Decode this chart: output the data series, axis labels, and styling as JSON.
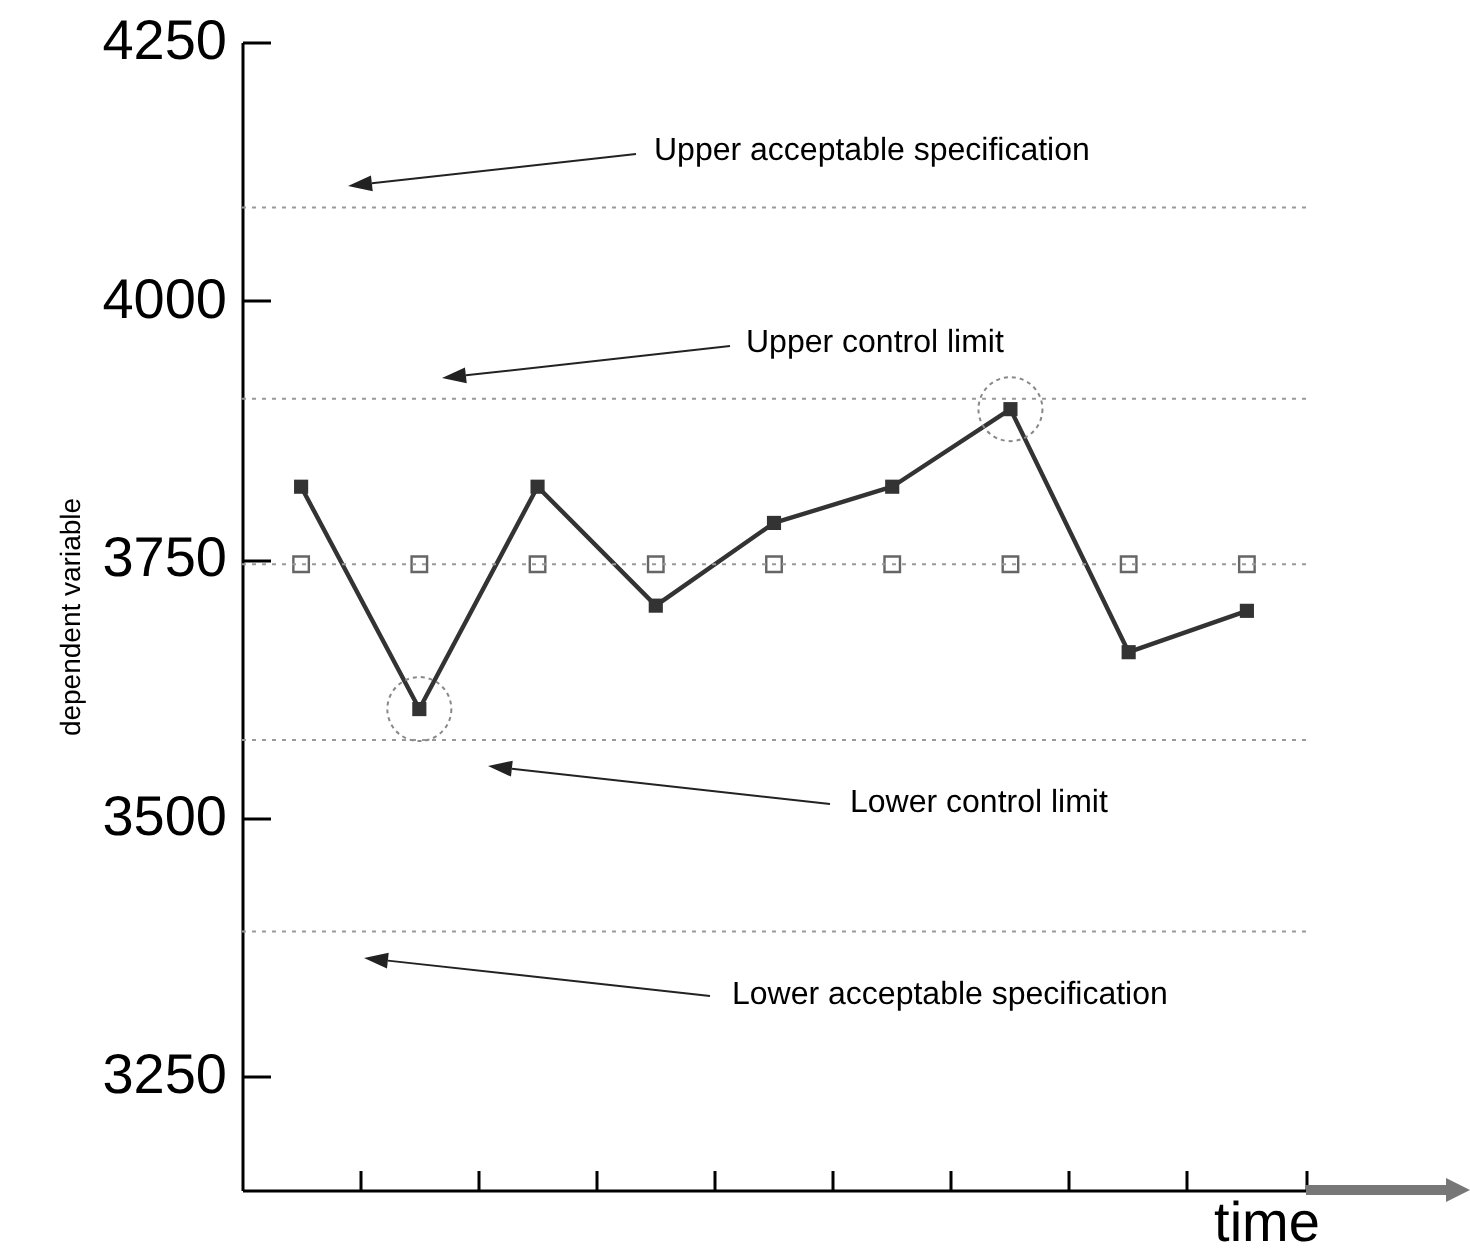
{
  "chart_data": {
    "type": "line",
    "xlabel": "time",
    "ylabel": "dependent variable",
    "categories": [
      null,
      null,
      null,
      null,
      null,
      null,
      null,
      null,
      null
    ],
    "series": [
      {
        "type": "line",
        "color": "#333333",
        "marker": "square",
        "values": [
          3820,
          3605,
          3820,
          3705,
          3785,
          3820,
          3895,
          3660,
          3700
        ]
      },
      {
        "type": "scatter",
        "color": "#666666",
        "marker": "square",
        "values": [
          3745,
          3745,
          3745,
          3745,
          3745,
          3745,
          3745,
          3745,
          3745
        ]
      }
    ],
    "ylim": [
      3140,
      4250
    ],
    "yticks": [
      3250,
      3500,
      3750,
      4000,
      4250
    ],
    "ref_lines": [
      {
        "axis": "y",
        "value": 4090,
        "label": "Upper acceptable specification",
        "color": "#999999",
        "line_style": "dotted"
      },
      {
        "axis": "y",
        "value": 3905,
        "label": "Upper control limit",
        "color": "#999999",
        "line_style": "dotted"
      },
      {
        "axis": "y",
        "value": 3745,
        "color": "#999999",
        "line_style": "dotted"
      },
      {
        "axis": "y",
        "value": 3575,
        "label": "Lower control limit",
        "color": "#999999",
        "line_style": "dotted"
      },
      {
        "axis": "y",
        "value": 3390,
        "label": "Lower acceptable specification",
        "color": "#999999",
        "line_style": "dotted"
      }
    ],
    "grid": false,
    "tick_labels": "y"
  }
}
